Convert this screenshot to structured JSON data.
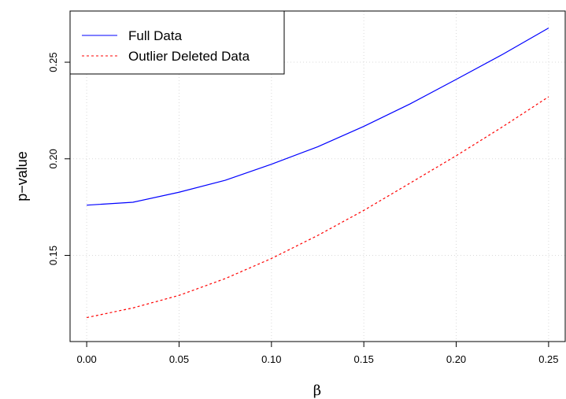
{
  "chart_data": {
    "type": "line",
    "xlabel": "β",
    "ylabel": "p−value",
    "xlim": [
      -0.009,
      0.259
    ],
    "ylim": [
      0.1054,
      0.2765
    ],
    "x_ticks": [
      0.0,
      0.05,
      0.1,
      0.15,
      0.2,
      0.25
    ],
    "x_tick_labels": [
      "0.00",
      "0.05",
      "0.10",
      "0.15",
      "0.20",
      "0.25"
    ],
    "y_ticks": [
      0.15,
      0.2,
      0.25
    ],
    "y_tick_labels": [
      "0.15",
      "0.20",
      "0.25"
    ],
    "grid": true,
    "legend_position": "top-left",
    "x": [
      0.0,
      0.025,
      0.05,
      0.075,
      0.1,
      0.125,
      0.15,
      0.175,
      0.2,
      0.225,
      0.25
    ],
    "series": [
      {
        "name": "Full Data",
        "color": "#0000ff",
        "line_style": "solid",
        "values": [
          0.176,
          0.1775,
          0.1827,
          0.1889,
          0.1972,
          0.2062,
          0.2168,
          0.2284,
          0.2411,
          0.254,
          0.2677
        ]
      },
      {
        "name": "Outlier Deleted Data",
        "color": "#ff0000",
        "line_style": "dashed",
        "values": [
          0.1178,
          0.1228,
          0.1293,
          0.138,
          0.1484,
          0.1603,
          0.1733,
          0.1874,
          0.2016,
          0.2165,
          0.2321
        ]
      }
    ]
  }
}
